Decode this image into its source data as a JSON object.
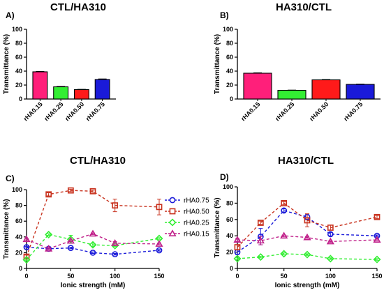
{
  "chart_data": [
    {
      "panel_label": "A)",
      "type": "bar",
      "title": "CTL/HA310",
      "xlabel": "",
      "ylabel": "Transmittance (%)",
      "ylim": [
        0,
        100
      ],
      "yticks": [
        0,
        20,
        40,
        60,
        80,
        100
      ],
      "categories": [
        "rHA0.15",
        "rHA0.25",
        "rHA0.50",
        "rHA0.75"
      ],
      "values": [
        39,
        17.5,
        13.5,
        28
      ],
      "errors": [
        0.5,
        0.6,
        0.4,
        0.8
      ],
      "colors": [
        "#ff1f7a",
        "#33ee33",
        "#ff1a1a",
        "#1a1ad9"
      ]
    },
    {
      "panel_label": "B)",
      "type": "bar",
      "title": "HA310/CTL",
      "xlabel": "",
      "ylabel": "Transmittance (%)",
      "ylim": [
        0,
        100
      ],
      "yticks": [
        0,
        20,
        40,
        60,
        80,
        100
      ],
      "categories": [
        "rHA0.15",
        "rHA0.25",
        "rHA0.50",
        "rHA0.75"
      ],
      "values": [
        37,
        12.5,
        27.5,
        21
      ],
      "errors": [
        0.6,
        0.3,
        0.5,
        0.5
      ],
      "colors": [
        "#ff1f7a",
        "#33ee33",
        "#ff1a1a",
        "#1a1ad9"
      ]
    },
    {
      "panel_label": "C)",
      "type": "line",
      "title": "CTL/HA310",
      "xlabel": "Ionic strength (mM)",
      "ylabel": "Transmittance (%)",
      "xlim": [
        0,
        150
      ],
      "ylim": [
        0,
        100
      ],
      "xticks": [
        0,
        50,
        100,
        150
      ],
      "yticks": [
        0,
        20,
        40,
        60,
        80,
        100
      ],
      "legend": "right",
      "x": [
        0,
        25,
        50,
        75,
        100,
        150
      ],
      "series": [
        {
          "name": "rHA0.75",
          "color": "#1a1ad9",
          "marker": "circle",
          "values": [
            27,
            25,
            26,
            20,
            18,
            23
          ],
          "errors": [
            1,
            1,
            1,
            1,
            1,
            1
          ]
        },
        {
          "name": "rHA0.50",
          "color": "#c8321e",
          "marker": "square",
          "values": [
            15,
            94,
            99,
            98,
            80,
            78
          ],
          "errors": [
            2,
            2,
            1.5,
            1.5,
            8,
            10
          ]
        },
        {
          "name": "rHA0.25",
          "color": "#33ee33",
          "marker": "diamond",
          "values": [
            11,
            43,
            37,
            30,
            29,
            38
          ],
          "errors": [
            1,
            1,
            5,
            2,
            1,
            1
          ]
        },
        {
          "name": "rHA0.15",
          "color": "#c0208a",
          "marker": "triangle",
          "values": [
            37,
            25,
            35,
            44,
            32,
            31
          ],
          "errors": [
            1,
            1,
            1,
            1,
            2,
            1
          ]
        }
      ]
    },
    {
      "panel_label": "D)",
      "type": "line",
      "title": "HA310/CTL",
      "xlabel": "Ionic strength (mM)",
      "ylabel": "Transmittance (%)",
      "xlim": [
        0,
        150
      ],
      "ylim": [
        0,
        100
      ],
      "xticks": [
        0,
        50,
        100,
        150
      ],
      "yticks": [
        0,
        20,
        40,
        60,
        80,
        100
      ],
      "x": [
        0,
        25,
        50,
        75,
        100,
        150
      ],
      "series": [
        {
          "name": "rHA0.75",
          "color": "#1a1ad9",
          "marker": "circle",
          "values": [
            20,
            39,
            71,
            63,
            42,
            40
          ],
          "errors": [
            3,
            10,
            2,
            3,
            2,
            1
          ]
        },
        {
          "name": "rHA0.50",
          "color": "#c8321e",
          "marker": "square",
          "values": [
            26,
            56,
            80,
            59,
            50,
            63
          ],
          "errors": [
            3,
            2,
            2,
            8,
            3,
            2
          ]
        },
        {
          "name": "rHA0.25",
          "color": "#33ee33",
          "marker": "diamond",
          "values": [
            12,
            14,
            18,
            17,
            12,
            11
          ],
          "errors": [
            1,
            1,
            1,
            1,
            1,
            1
          ]
        },
        {
          "name": "rHA0.15",
          "color": "#c0208a",
          "marker": "triangle",
          "values": [
            35,
            34,
            40,
            38,
            33,
            35
          ],
          "errors": [
            2,
            5,
            1,
            1,
            1,
            1
          ]
        }
      ]
    }
  ]
}
